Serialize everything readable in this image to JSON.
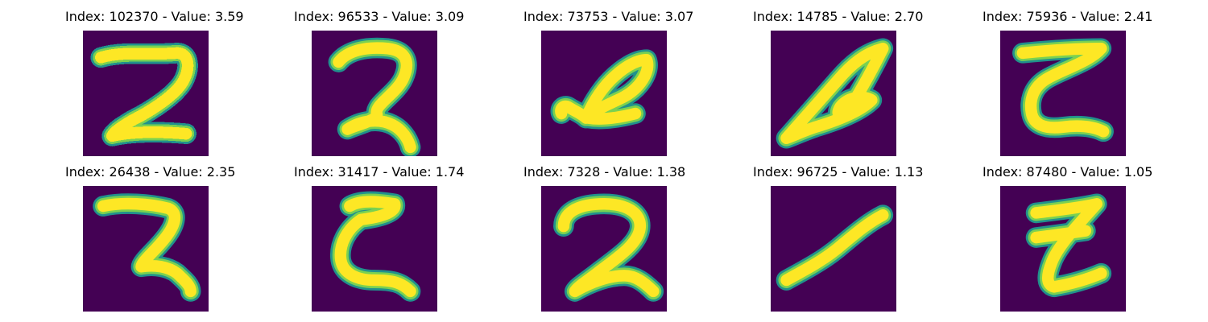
{
  "colors": {
    "background": "#440154",
    "ink_low": "#21918c",
    "ink_mid": "#7ad151",
    "ink_high": "#fde725"
  },
  "images": [
    {
      "title": "Index: 102370 - Value: 3.59",
      "glyph": "two-looped"
    },
    {
      "title": "Index: 96533 - Value: 3.09",
      "glyph": "two-curly"
    },
    {
      "title": "Index: 73753 - Value: 3.07",
      "glyph": "slanted-loop"
    },
    {
      "title": "Index: 14785 - Value: 2.70",
      "glyph": "slanted-script"
    },
    {
      "title": "Index: 75936 - Value: 2.41",
      "glyph": "z-shape"
    },
    {
      "title": "Index: 26438 - Value: 2.35",
      "glyph": "two-bold"
    },
    {
      "title": "Index: 31417 - Value: 1.74",
      "glyph": "two-open"
    },
    {
      "title": "Index: 7328 - Value: 1.38",
      "glyph": "two-round"
    },
    {
      "title": "Index: 96725 - Value: 1.13",
      "glyph": "diagonal-stroke"
    },
    {
      "title": "Index: 87480 - Value: 1.05",
      "glyph": "z-crossed"
    }
  ]
}
